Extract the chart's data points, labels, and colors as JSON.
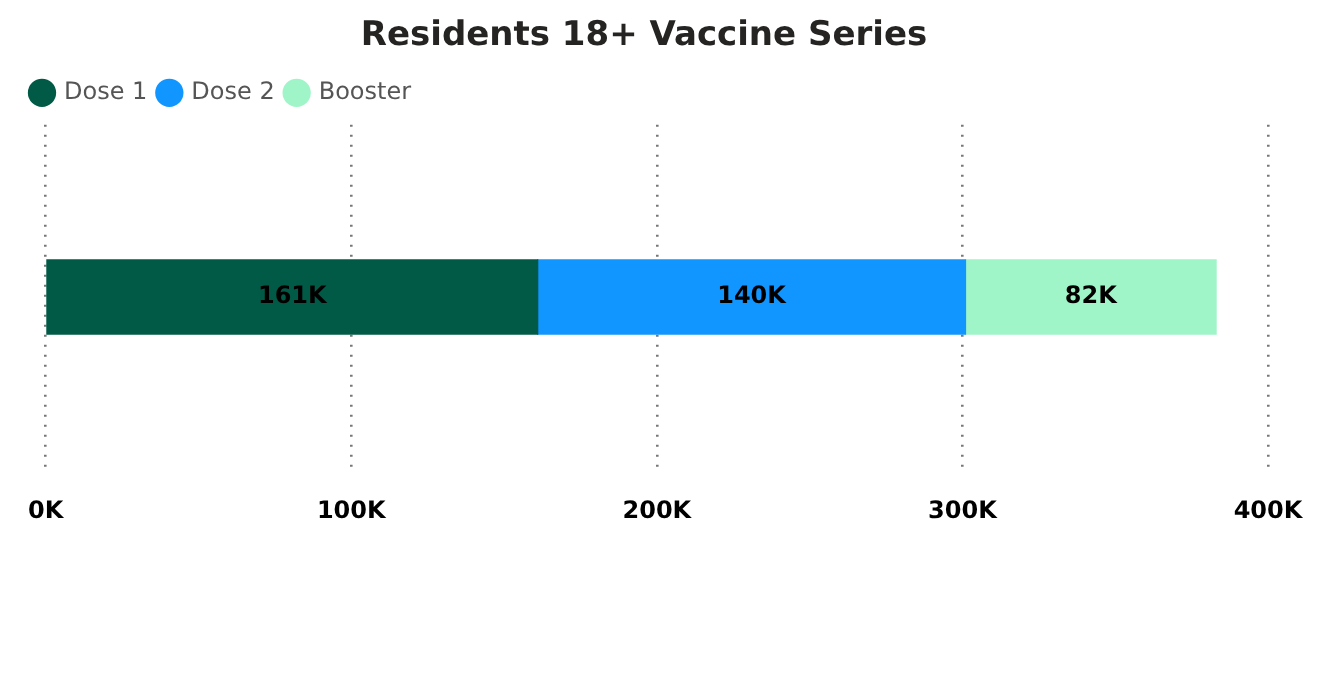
{
  "chart_data": {
    "type": "bar",
    "orientation": "horizontal",
    "stacked": true,
    "title": "Residents 18+ Vaccine Series",
    "categories": [
      null
    ],
    "series": [
      {
        "name": "Dose 1",
        "color": "#005a46",
        "values": [
          161000
        ],
        "value_labels": [
          "161K"
        ]
      },
      {
        "name": "Dose 2",
        "color": "#1196ff",
        "values": [
          140000
        ],
        "value_labels": [
          "140K"
        ]
      },
      {
        "name": "Booster",
        "color": "#a0f5c8",
        "values": [
          82000
        ],
        "value_labels": [
          "82K"
        ]
      }
    ],
    "xlim": [
      0,
      400000
    ],
    "xticks": [
      {
        "value": 0,
        "label": "0K"
      },
      {
        "value": 100000,
        "label": "100K"
      },
      {
        "value": 200000,
        "label": "200K"
      },
      {
        "value": 300000,
        "label": "300K"
      },
      {
        "value": 400000,
        "label": "400K"
      }
    ],
    "grid": "x",
    "legend": "top left"
  }
}
